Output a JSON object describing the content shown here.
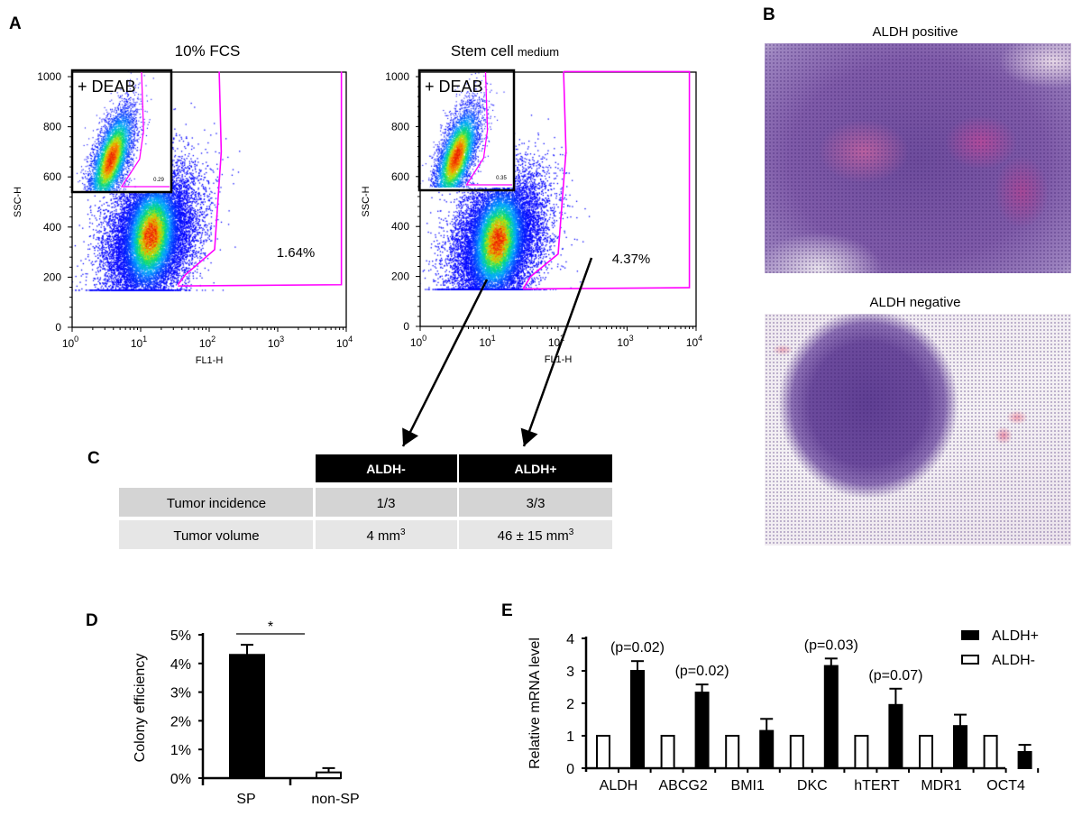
{
  "panel_labels": {
    "a": "A",
    "b": "B",
    "c": "C",
    "d": "D",
    "e": "E"
  },
  "chart_data": [
    {
      "type": "scatter",
      "panel": "A",
      "title": "10% FCS",
      "title_suffix": "",
      "xlabel": "FL1-H",
      "ylabel": "SSC-H",
      "x_scale": "log",
      "xlim": [
        1,
        10000
      ],
      "x_tick_base": "10",
      "x_tick_exponents": [
        "0",
        "1",
        "2",
        "3",
        "4"
      ],
      "ylim": [
        0,
        1000
      ],
      "y_ticks": [
        "0",
        "200",
        "400",
        "600",
        "800",
        "1000"
      ],
      "gate_percent_label": "1.64%",
      "inset": {
        "label": "+ DEAB",
        "gate_value": "0.29"
      },
      "gate_color": "#ff00ff"
    },
    {
      "type": "scatter",
      "panel": "A",
      "title": "Stem cell",
      "title_suffix": "medium",
      "xlabel": "FL1-H",
      "ylabel": "SSC-H",
      "x_scale": "log",
      "xlim": [
        1,
        10000
      ],
      "x_tick_base": "10",
      "x_tick_exponents": [
        "0",
        "1",
        "2",
        "3",
        "4"
      ],
      "ylim": [
        0,
        1000
      ],
      "y_ticks": [
        "0",
        "200",
        "400",
        "600",
        "800",
        "1000"
      ],
      "gate_percent_label": "4.37%",
      "inset": {
        "label": "+ DEAB",
        "gate_value": "0.35"
      },
      "gate_color": "#ff00ff"
    },
    {
      "type": "table",
      "panel": "C",
      "columns": [
        "",
        "ALDH-",
        "ALDH+"
      ],
      "rows": [
        {
          "label": "Tumor incidence",
          "aldh_neg": "1/3",
          "aldh_pos": "3/3"
        },
        {
          "label": "Tumor volume",
          "aldh_neg": "4 mm",
          "aldh_neg_sup": "3",
          "aldh_pos": "46 ± 15 mm",
          "aldh_pos_sup": "3"
        }
      ]
    },
    {
      "type": "bar",
      "panel": "D",
      "ylabel": "Colony efficiency",
      "ylim": [
        0,
        5
      ],
      "y_ticks": [
        "0%",
        "1%",
        "2%",
        "3%",
        "4%",
        "5%"
      ],
      "categories": [
        "SP",
        "non-SP"
      ],
      "values": [
        4.3,
        0.2
      ],
      "errors": [
        0.35,
        0.15
      ],
      "fills": [
        "#000000",
        "#ffffff"
      ],
      "significance": "*"
    },
    {
      "type": "bar",
      "panel": "E",
      "ylabel": "Relative mRNA level",
      "ylim": [
        0,
        4
      ],
      "y_ticks": [
        "0",
        "1",
        "2",
        "3",
        "4"
      ],
      "categories": [
        "ALDH",
        "ABCG2",
        "BMI1",
        "DKC",
        "hTERT",
        "MDR1",
        "OCT4"
      ],
      "series": [
        {
          "name": "ALDH-",
          "fill": "#ffffff",
          "values": [
            1,
            1,
            1,
            1,
            1,
            1,
            1
          ],
          "errors": [
            0,
            0,
            0,
            0,
            0,
            0,
            0
          ]
        },
        {
          "name": "ALDH+",
          "fill": "#000000",
          "values": [
            3.0,
            2.33,
            1.15,
            3.15,
            1.95,
            1.3,
            0.5
          ],
          "errors": [
            0.3,
            0.25,
            0.37,
            0.23,
            0.5,
            0.35,
            0.22
          ]
        }
      ],
      "annotations": [
        "(p=0.02)",
        "(p=0.02)",
        "",
        "(p=0.03)",
        "(p=0.07)",
        "",
        ""
      ],
      "legend": "top-right"
    }
  ],
  "histology": {
    "positive_title": "ALDH positive",
    "negative_title": "ALDH negative"
  }
}
